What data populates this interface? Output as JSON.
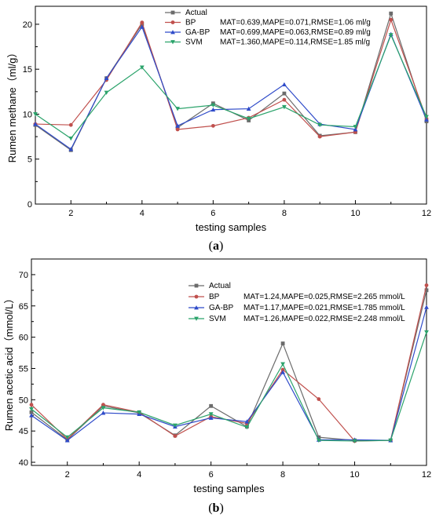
{
  "series_colors": {
    "Actual": "#6b6b6b",
    "BP": "#c0504d",
    "GA-BP": "#2f4bc9",
    "SVM": "#2ba36b"
  },
  "chart_data": [
    {
      "type": "line",
      "panel_label": "a",
      "xlabel": "testing samples",
      "ylabel": "Rumen methane（ml/g）",
      "xlim": [
        1,
        12
      ],
      "ylim": [
        0,
        22
      ],
      "xticks": [
        2,
        4,
        6,
        8,
        10,
        12
      ],
      "yticks": [
        0,
        5,
        10,
        15,
        20
      ],
      "legend_position": "top-right",
      "x": [
        1,
        2,
        3,
        4,
        5,
        6,
        7,
        8,
        9,
        10,
        11,
        12
      ],
      "series": [
        {
          "name": "Actual",
          "marker": "square",
          "values": [
            8.8,
            6.0,
            14.0,
            20.0,
            8.5,
            11.2,
            9.3,
            12.3,
            7.6,
            8.0,
            21.2,
            9.2
          ],
          "metrics": ""
        },
        {
          "name": "BP",
          "marker": "circle",
          "values": [
            8.9,
            8.8,
            13.8,
            20.2,
            8.3,
            8.7,
            9.6,
            11.6,
            7.5,
            8.0,
            20.5,
            9.5
          ],
          "metrics": "MAT=0.639,MAPE=0.071,RMSE=1.06 ml/g"
        },
        {
          "name": "GA-BP",
          "marker": "triangle",
          "values": [
            8.9,
            6.1,
            14.0,
            19.7,
            8.7,
            10.5,
            10.6,
            13.3,
            8.9,
            8.3,
            18.9,
            9.4
          ],
          "metrics": "MAT=0.699,MAPE=0.063,RMSE=0.89 ml/g"
        },
        {
          "name": "SVM",
          "marker": "triangle-down",
          "values": [
            10.0,
            7.3,
            12.4,
            15.2,
            10.6,
            11.0,
            9.5,
            10.8,
            8.8,
            8.6,
            18.8,
            9.7
          ],
          "metrics": "MAT=1.360,MAPE=0.114,RMSE=1.85 ml/g"
        }
      ]
    },
    {
      "type": "line",
      "panel_label": "b",
      "xlabel": "testing samples",
      "ylabel": "Rumen acetic acid（mmol/L）",
      "xlim": [
        1,
        12
      ],
      "ylim": [
        39.5,
        72.5
      ],
      "xticks": [
        2,
        4,
        6,
        8,
        10,
        12
      ],
      "yticks": [
        40,
        45,
        50,
        55,
        60,
        65,
        70
      ],
      "legend_position": "top-right",
      "x": [
        1,
        2,
        3,
        4,
        5,
        6,
        7,
        8,
        9,
        10,
        11,
        12
      ],
      "series": [
        {
          "name": "Actual",
          "marker": "square",
          "values": [
            48.0,
            43.6,
            49.0,
            47.9,
            44.3,
            49.0,
            45.7,
            59.0,
            44.0,
            43.5,
            43.5,
            67.5
          ],
          "metrics": ""
        },
        {
          "name": "BP",
          "marker": "circle",
          "values": [
            49.2,
            43.7,
            49.2,
            48.0,
            44.2,
            47.3,
            46.2,
            54.8,
            50.1,
            43.4,
            43.5,
            68.3
          ],
          "metrics": "MAT=1.24,MAPE=0.025,RMSE=2.265 mmol/L"
        },
        {
          "name": "GA-BP",
          "marker": "triangle",
          "values": [
            47.5,
            43.5,
            47.9,
            47.7,
            45.7,
            47.1,
            46.5,
            54.4,
            43.6,
            43.6,
            43.5,
            64.8
          ],
          "metrics": "MAT=1.17,MAPE=0.021,RMSE=1.785 mmol/L"
        },
        {
          "name": "SVM",
          "marker": "triangle-down",
          "values": [
            48.5,
            44.0,
            48.7,
            48.0,
            45.9,
            47.7,
            45.6,
            55.7,
            43.5,
            43.4,
            43.5,
            60.8
          ],
          "metrics": "MAT=1.26,MAPE=0.022,RMSE=2.248 mmol/L"
        }
      ]
    }
  ]
}
